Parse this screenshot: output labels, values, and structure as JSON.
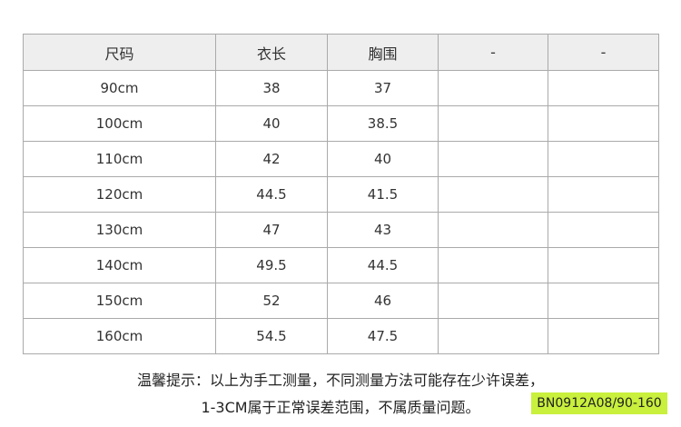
{
  "table": {
    "header": [
      "尺码",
      "衣长",
      "胸围",
      "-",
      "-"
    ],
    "rows": [
      [
        "90cm",
        "38",
        "37"
      ],
      [
        "100cm",
        "40",
        "38.5"
      ],
      [
        "110cm",
        "42",
        "40"
      ],
      [
        "120cm",
        "44.5",
        "41.5"
      ],
      [
        "130cm",
        "47",
        "43"
      ],
      [
        "140cm",
        "49.5",
        "44.5"
      ],
      [
        "150cm",
        "52",
        "46"
      ],
      [
        "160cm",
        "54.5",
        "47.5"
      ]
    ]
  },
  "note": {
    "line1": "温馨提示：以上为手工测量，不同测量方法可能存在少许误差，",
    "line2": "1-3CM属于正常误差范围，不属质量问题。"
  },
  "code": "BN0912A08/90-160"
}
